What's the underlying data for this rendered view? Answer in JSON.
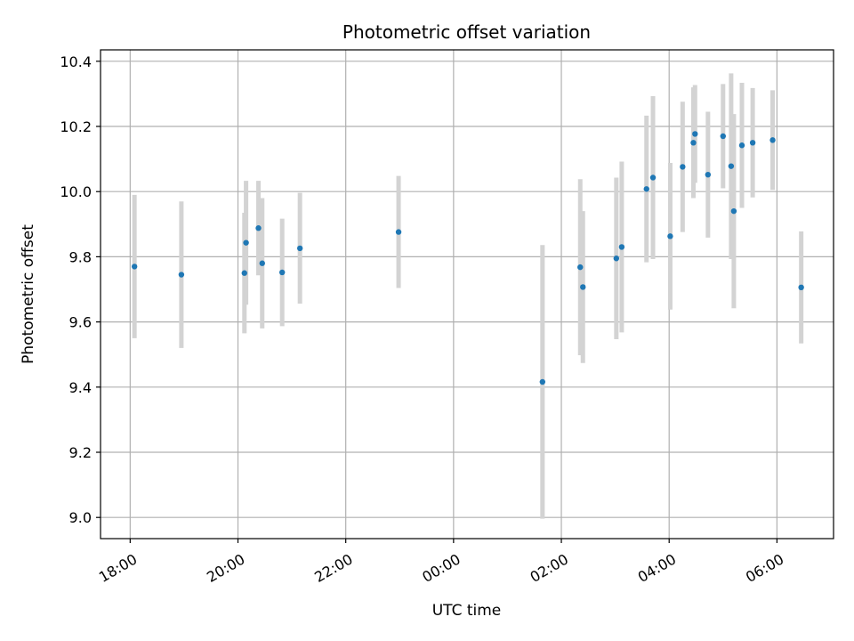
{
  "chart_data": {
    "type": "scatter",
    "title": "Photometric offset variation",
    "xlabel": "UTC time",
    "ylabel": "Photometric offset",
    "x_tick_labels": [
      "18:00",
      "20:00",
      "22:00",
      "00:00",
      "02:00",
      "04:00",
      "06:00"
    ],
    "y_tick_labels": [
      "9.0",
      "9.2",
      "9.4",
      "9.6",
      "9.8",
      "10.0",
      "10.2",
      "10.4"
    ],
    "x_ticks_hours": [
      18,
      20,
      22,
      24,
      26,
      28,
      30
    ],
    "y_ticks": [
      9.0,
      9.2,
      9.4,
      9.6,
      9.8,
      10.0,
      10.2,
      10.4
    ],
    "xlim_hours": [
      17.45,
      31.05
    ],
    "ylim": [
      8.935,
      10.435
    ],
    "grid": true,
    "colors": {
      "point": "#1f77b4",
      "errorbar": "#d3d3d3",
      "grid": "#b0b0b0",
      "axes": "#000000"
    },
    "series": [
      {
        "points": [
          {
            "t": 18.08,
            "y": 9.77,
            "err": 0.22
          },
          {
            "t": 18.95,
            "y": 9.745,
            "err": 0.225
          },
          {
            "t": 20.12,
            "y": 9.75,
            "err": 0.185
          },
          {
            "t": 20.15,
            "y": 9.843,
            "err": 0.19
          },
          {
            "t": 20.38,
            "y": 9.888,
            "err": 0.145
          },
          {
            "t": 20.45,
            "y": 9.78,
            "err": 0.2
          },
          {
            "t": 20.82,
            "y": 9.752,
            "err": 0.165
          },
          {
            "t": 21.15,
            "y": 9.826,
            "err": 0.17
          },
          {
            "t": 22.98,
            "y": 9.876,
            "err": 0.172
          },
          {
            "t": 25.65,
            "y": 9.416,
            "err": 0.42
          },
          {
            "t": 26.35,
            "y": 9.768,
            "err": 0.27
          },
          {
            "t": 26.4,
            "y": 9.707,
            "err": 0.233
          },
          {
            "t": 27.02,
            "y": 9.795,
            "err": 0.248
          },
          {
            "t": 27.12,
            "y": 9.83,
            "err": 0.262
          },
          {
            "t": 27.58,
            "y": 10.008,
            "err": 0.225
          },
          {
            "t": 27.7,
            "y": 10.043,
            "err": 0.25
          },
          {
            "t": 28.02,
            "y": 9.863,
            "err": 0.225
          },
          {
            "t": 28.25,
            "y": 10.076,
            "err": 0.2
          },
          {
            "t": 28.45,
            "y": 10.15,
            "err": 0.17
          },
          {
            "t": 28.48,
            "y": 10.177,
            "err": 0.15
          },
          {
            "t": 28.72,
            "y": 10.052,
            "err": 0.193
          },
          {
            "t": 29.0,
            "y": 10.17,
            "err": 0.16
          },
          {
            "t": 29.15,
            "y": 10.078,
            "err": 0.285
          },
          {
            "t": 29.2,
            "y": 9.94,
            "err": 0.298
          },
          {
            "t": 29.35,
            "y": 10.142,
            "err": 0.192
          },
          {
            "t": 29.55,
            "y": 10.15,
            "err": 0.168
          },
          {
            "t": 29.92,
            "y": 10.158,
            "err": 0.153
          },
          {
            "t": 30.45,
            "y": 9.706,
            "err": 0.172
          }
        ]
      }
    ]
  }
}
